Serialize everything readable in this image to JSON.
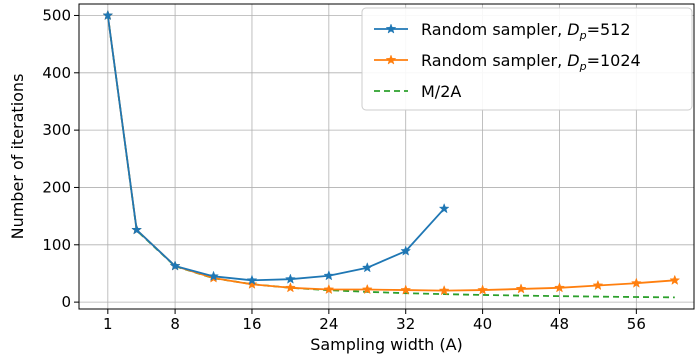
{
  "chart_data": {
    "type": "line",
    "xlabel": "Sampling width (A)",
    "ylabel": "Number of iterations",
    "xlim": [
      -2,
      62
    ],
    "ylim": [
      -12,
      520
    ],
    "xticks": [
      1,
      8,
      16,
      24,
      32,
      40,
      48,
      56
    ],
    "yticks": [
      0,
      100,
      200,
      300,
      400,
      500
    ],
    "grid": true,
    "legend_position": "top-right",
    "series": [
      {
        "name": "Random sampler, D_p=512",
        "legend_prefix": "Random sampler, ",
        "legend_symbol": "D",
        "legend_subscript": "p",
        "legend_suffix": "=512",
        "color": "#1f77b4",
        "style": "solid-star",
        "x": [
          1,
          4,
          8,
          12,
          16,
          20,
          24,
          28,
          32,
          36
        ],
        "y": [
          500,
          126,
          63,
          45,
          38,
          40,
          46,
          60,
          89,
          163
        ]
      },
      {
        "name": "Random sampler, D_p=1024",
        "legend_prefix": "Random sampler, ",
        "legend_symbol": "D",
        "legend_subscript": "p",
        "legend_suffix": "=1024",
        "color": "#ff7f0e",
        "style": "solid-star",
        "x": [
          1,
          4,
          8,
          12,
          16,
          20,
          24,
          28,
          32,
          36,
          40,
          44,
          48,
          52,
          56,
          60
        ],
        "y": [
          500,
          126,
          63,
          42,
          31,
          25,
          22,
          22,
          21,
          20,
          21,
          23,
          25,
          29,
          33,
          38
        ]
      },
      {
        "name": "M/2A",
        "legend_prefix": "M/2A",
        "legend_symbol": "",
        "legend_subscript": "",
        "legend_suffix": "",
        "color": "#2ca02c",
        "style": "dashed",
        "x": [
          1,
          4,
          8,
          12,
          16,
          20,
          24,
          28,
          32,
          36,
          40,
          44,
          48,
          52,
          56,
          60
        ],
        "y": [
          500,
          125,
          62.5,
          41.7,
          31.3,
          25,
          20.8,
          17.9,
          15.6,
          13.9,
          12.5,
          11.4,
          10.4,
          9.6,
          8.9,
          8.3
        ]
      }
    ]
  }
}
